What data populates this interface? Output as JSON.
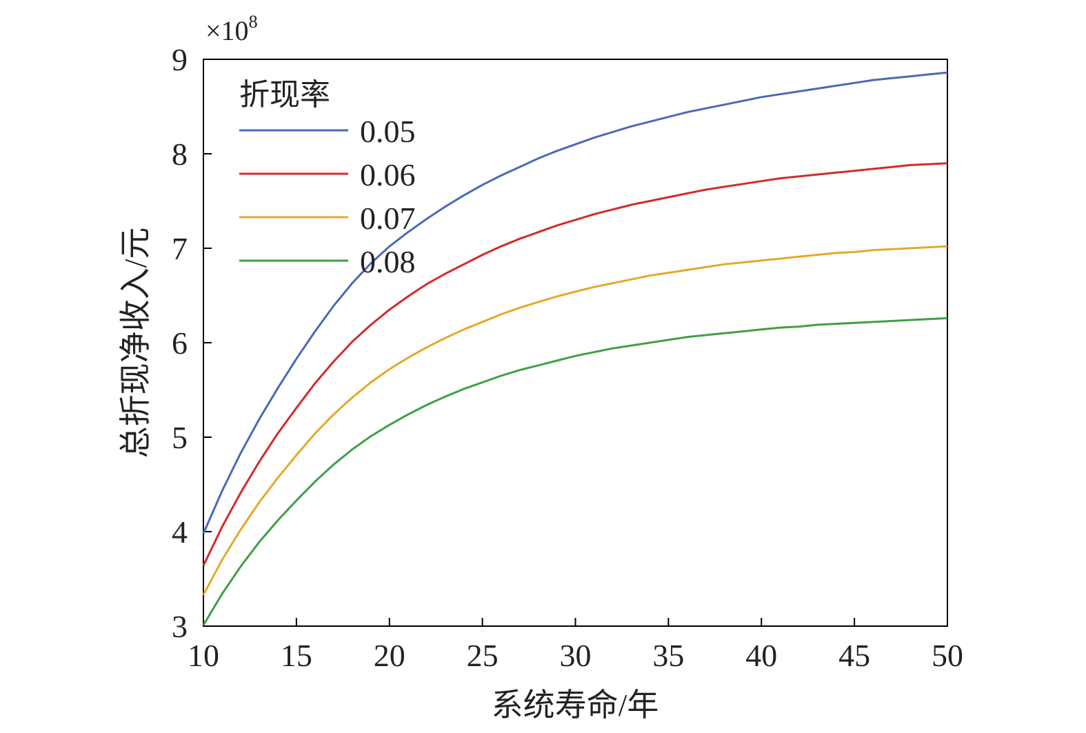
{
  "chart_data": {
    "type": "line",
    "xlabel": "系统寿命/年",
    "ylabel": "总折现净收入/元",
    "y_multiplier_base": "×10",
    "y_multiplier_exp": "8",
    "xlim": [
      10,
      50
    ],
    "ylim": [
      3,
      9
    ],
    "xticks": [
      "10",
      "15",
      "20",
      "25",
      "30",
      "35",
      "40",
      "45",
      "50"
    ],
    "yticks": [
      "3",
      "4",
      "5",
      "6",
      "7",
      "8",
      "9"
    ],
    "grid": false,
    "legend": {
      "title": "折现率",
      "placement": "top-left"
    },
    "x": [
      10,
      11,
      12,
      13,
      14,
      15,
      16,
      17,
      18,
      19,
      20,
      21,
      22,
      23,
      24,
      25,
      26,
      27,
      28,
      29,
      30,
      31,
      32,
      33,
      34,
      35,
      36,
      37,
      38,
      39,
      40,
      41,
      42,
      43,
      44,
      45,
      46,
      47,
      48,
      49,
      50
    ],
    "series": [
      {
        "name": "0.05",
        "color": "#4a6ab3",
        "values": [
          3.98,
          4.43,
          4.83,
          5.19,
          5.52,
          5.83,
          6.12,
          6.39,
          6.63,
          6.84,
          7.02,
          7.17,
          7.31,
          7.44,
          7.56,
          7.67,
          7.77,
          7.86,
          7.95,
          8.03,
          8.1,
          8.17,
          8.23,
          8.29,
          8.34,
          8.39,
          8.44,
          8.48,
          8.52,
          8.56,
          8.6,
          8.63,
          8.66,
          8.69,
          8.72,
          8.75,
          8.78,
          8.8,
          8.82,
          8.84,
          8.86
        ],
        "display_values_note": ""
      },
      {
        "name": "0.06",
        "color": "#d42a2a",
        "values": [
          3.64,
          4.05,
          4.41,
          4.74,
          5.04,
          5.31,
          5.57,
          5.8,
          6.01,
          6.19,
          6.35,
          6.49,
          6.62,
          6.73,
          6.83,
          6.93,
          7.02,
          7.1,
          7.17,
          7.24,
          7.3,
          7.36,
          7.41,
          7.46,
          7.5,
          7.54,
          7.58,
          7.62,
          7.65,
          7.68,
          7.71,
          7.74,
          7.76,
          7.78,
          7.8,
          7.82,
          7.84,
          7.86,
          7.88,
          7.89,
          7.9
        ],
        "display_values_note": ""
      },
      {
        "name": "0.07",
        "color": "#e5a82a",
        "values": [
          3.33,
          3.7,
          4.02,
          4.31,
          4.57,
          4.81,
          5.04,
          5.24,
          5.42,
          5.58,
          5.72,
          5.84,
          5.95,
          6.05,
          6.14,
          6.22,
          6.3,
          6.37,
          6.43,
          6.49,
          6.54,
          6.59,
          6.63,
          6.67,
          6.71,
          6.74,
          6.77,
          6.8,
          6.83,
          6.85,
          6.87,
          6.89,
          6.91,
          6.93,
          6.95,
          6.96,
          6.98,
          6.99,
          7.0,
          7.01,
          7.02
        ],
        "display_values_note": ""
      },
      {
        "name": "0.08",
        "color": "#3f9f47",
        "values": [
          3.01,
          3.34,
          3.63,
          3.89,
          4.12,
          4.33,
          4.53,
          4.71,
          4.87,
          5.01,
          5.13,
          5.24,
          5.34,
          5.43,
          5.51,
          5.58,
          5.65,
          5.71,
          5.76,
          5.81,
          5.86,
          5.9,
          5.94,
          5.97,
          6.0,
          6.03,
          6.06,
          6.08,
          6.1,
          6.12,
          6.14,
          6.16,
          6.17,
          6.19,
          6.2,
          6.21,
          6.22,
          6.23,
          6.24,
          6.25,
          6.26
        ],
        "display_values_note": ""
      }
    ]
  }
}
